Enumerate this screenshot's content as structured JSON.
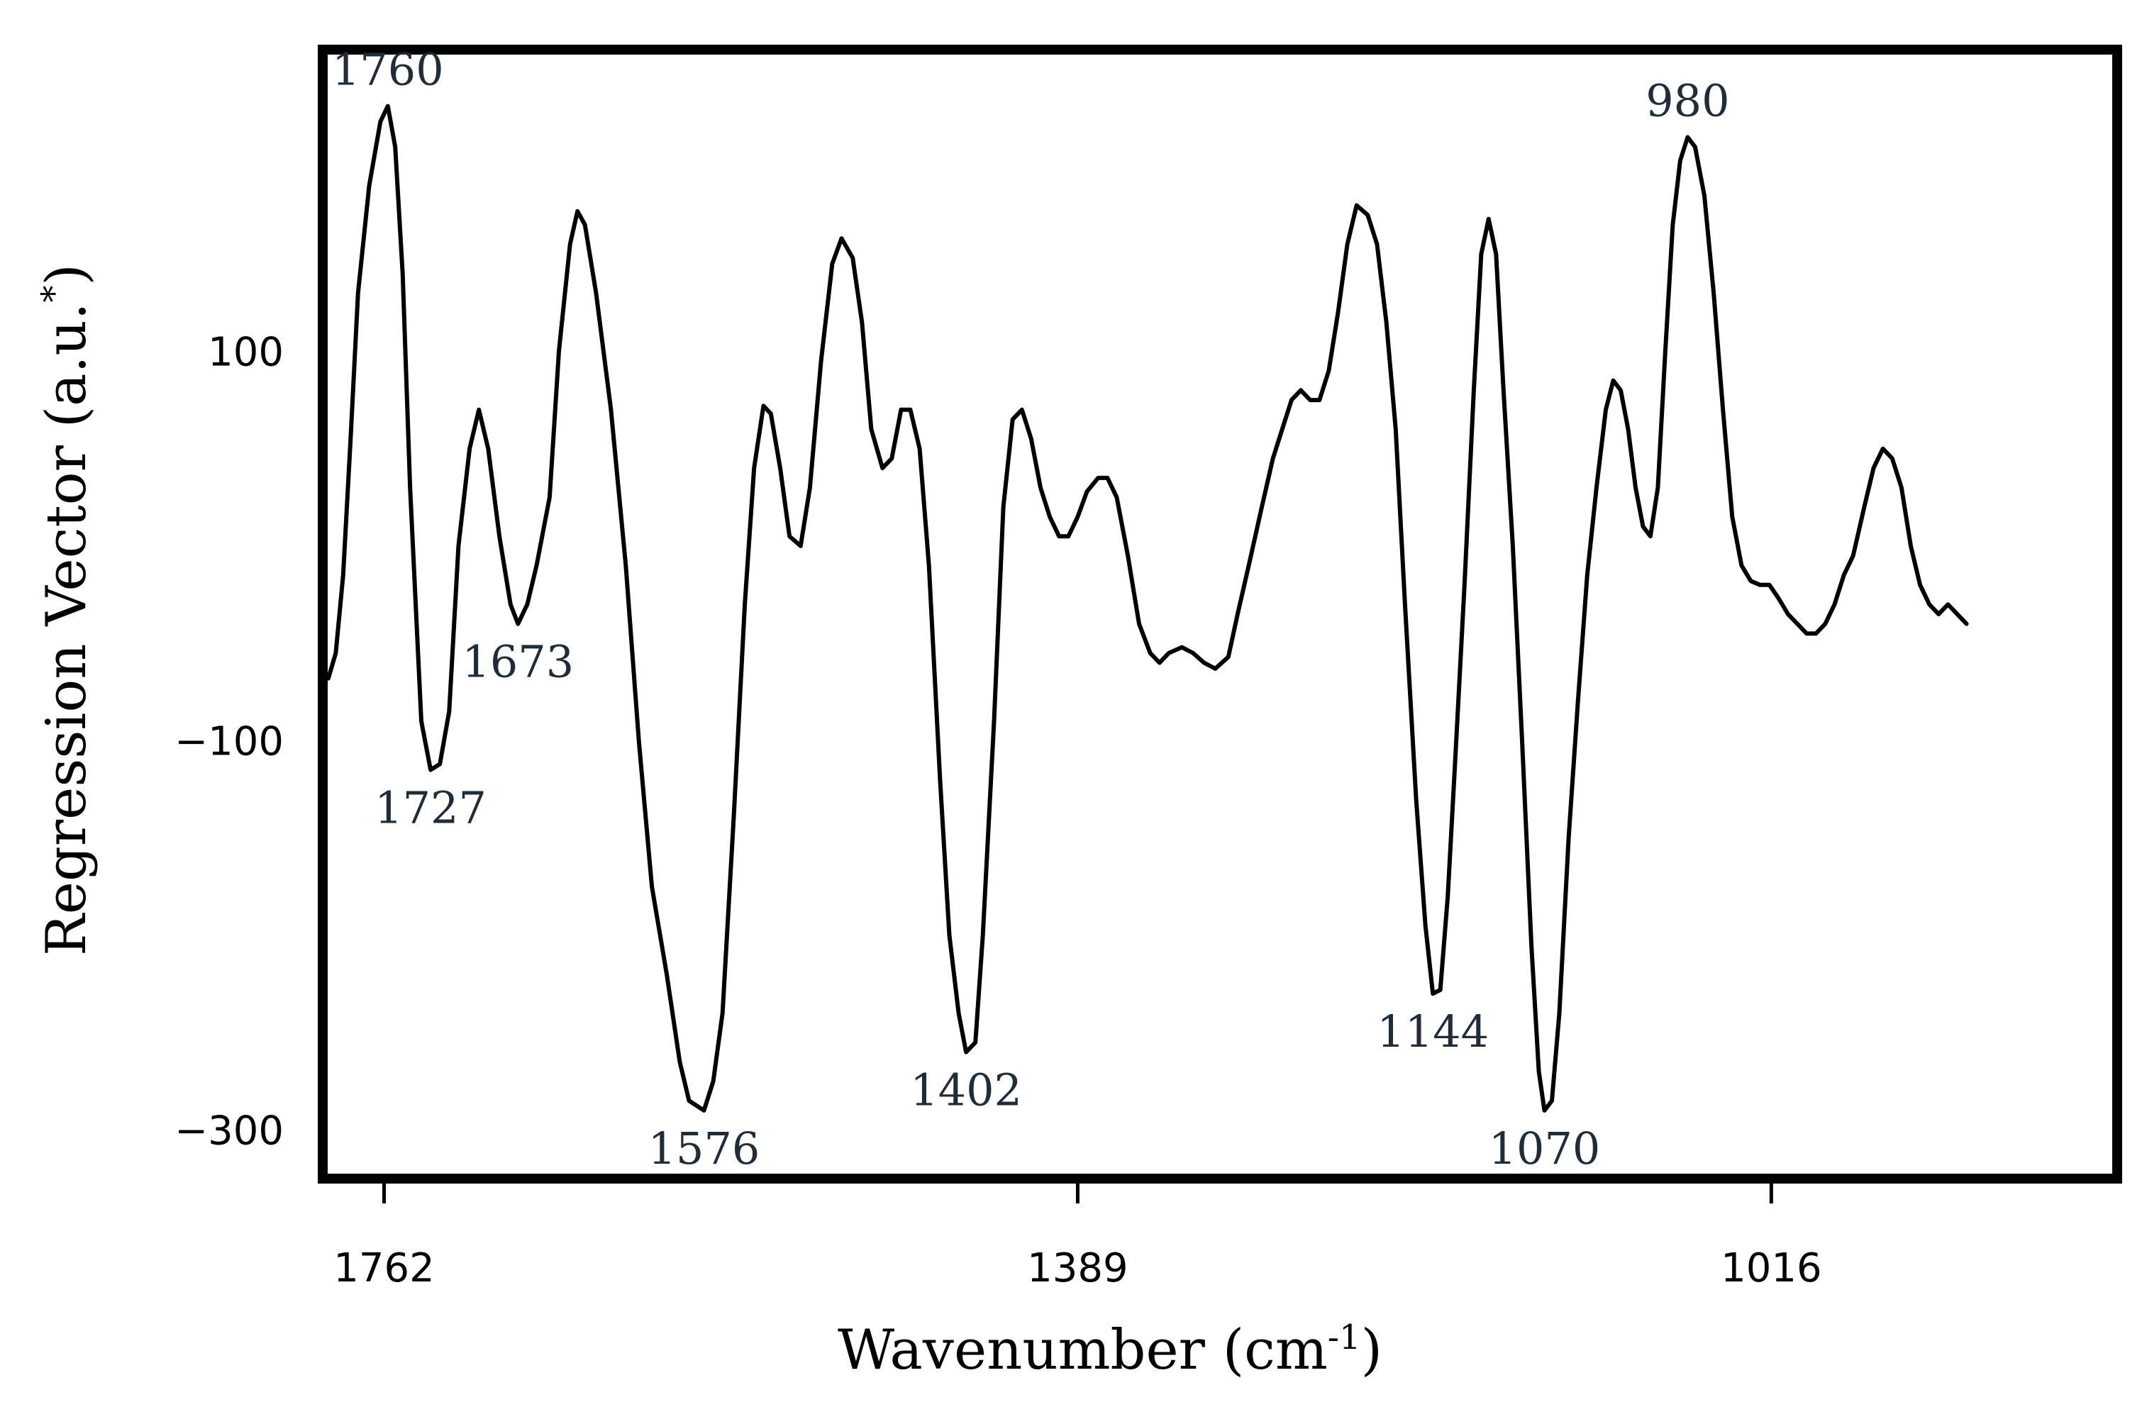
{
  "chart_data": {
    "type": "line",
    "xlabel": "Wavenumber (cm",
    "xlabel_sup": "-1",
    "xlabel_tail": ")",
    "ylabel": "Regression Vector (a.u.",
    "ylabel_sup": "*",
    "ylabel_tail": ")",
    "xlim": [
      1795,
      830
    ],
    "x_reversed": true,
    "ylim": [
      -325,
      255
    ],
    "grid": false,
    "x_ticks": [
      {
        "value": 1762,
        "label": "1762"
      },
      {
        "value": 1389,
        "label": "1389"
      },
      {
        "value": 1016,
        "label": "1016"
      }
    ],
    "y_ticks": [
      {
        "value": 100,
        "label": "100"
      },
      {
        "value": -100,
        "label": "−100"
      },
      {
        "value": -300,
        "label": "−300"
      }
    ],
    "series": [
      {
        "color": "#000000",
        "points": [
          [
            1792,
            -68
          ],
          [
            1788,
            -55
          ],
          [
            1784,
            -15
          ],
          [
            1780,
            55
          ],
          [
            1776,
            130
          ],
          [
            1770,
            185
          ],
          [
            1764,
            218
          ],
          [
            1760,
            226
          ],
          [
            1756,
            205
          ],
          [
            1752,
            140
          ],
          [
            1748,
            30
          ],
          [
            1742,
            -90
          ],
          [
            1737,
            -115
          ],
          [
            1732,
            -112
          ],
          [
            1727,
            -85
          ],
          [
            1722,
            0
          ],
          [
            1716,
            50
          ],
          [
            1711,
            70
          ],
          [
            1706,
            50
          ],
          [
            1700,
            5
          ],
          [
            1694,
            -30
          ],
          [
            1690,
            -40
          ],
          [
            1685,
            -30
          ],
          [
            1680,
            -10
          ],
          [
            1673,
            25
          ],
          [
            1668,
            100
          ],
          [
            1662,
            155
          ],
          [
            1658,
            172
          ],
          [
            1654,
            165
          ],
          [
            1648,
            130
          ],
          [
            1640,
            70
          ],
          [
            1632,
            -10
          ],
          [
            1625,
            -100
          ],
          [
            1618,
            -175
          ],
          [
            1610,
            -220
          ],
          [
            1603,
            -265
          ],
          [
            1598,
            -285
          ],
          [
            1590,
            -290
          ],
          [
            1585,
            -275
          ],
          [
            1580,
            -240
          ],
          [
            1574,
            -140
          ],
          [
            1568,
            -30
          ],
          [
            1563,
            40
          ],
          [
            1558,
            72
          ],
          [
            1554,
            68
          ],
          [
            1549,
            40
          ],
          [
            1544,
            5
          ],
          [
            1538,
            0
          ],
          [
            1533,
            30
          ],
          [
            1527,
            95
          ],
          [
            1521,
            145
          ],
          [
            1516,
            158
          ],
          [
            1510,
            148
          ],
          [
            1505,
            115
          ],
          [
            1500,
            60
          ],
          [
            1494,
            40
          ],
          [
            1489,
            45
          ],
          [
            1484,
            70
          ],
          [
            1479,
            70
          ],
          [
            1474,
            50
          ],
          [
            1469,
            -10
          ],
          [
            1463,
            -120
          ],
          [
            1458,
            -200
          ],
          [
            1453,
            -240
          ],
          [
            1449,
            -260
          ],
          [
            1444,
            -255
          ],
          [
            1440,
            -200
          ],
          [
            1434,
            -90
          ],
          [
            1429,
            20
          ],
          [
            1424,
            65
          ],
          [
            1419,
            70
          ],
          [
            1414,
            55
          ],
          [
            1409,
            30
          ],
          [
            1404,
            15
          ],
          [
            1399,
            5
          ],
          [
            1394,
            5
          ],
          [
            1389,
            15
          ],
          [
            1384,
            28
          ],
          [
            1378,
            35
          ],
          [
            1373,
            35
          ],
          [
            1368,
            25
          ],
          [
            1362,
            -5
          ],
          [
            1356,
            -40
          ],
          [
            1350,
            -55
          ],
          [
            1345,
            -60
          ],
          [
            1340,
            -55
          ],
          [
            1333,
            -52
          ],
          [
            1327,
            -55
          ],
          [
            1321,
            -60
          ],
          [
            1315,
            -63
          ],
          [
            1308,
            -57
          ],
          [
            1303,
            -35
          ],
          [
            1297,
            -10
          ],
          [
            1290,
            20
          ],
          [
            1284,
            45
          ],
          [
            1279,
            60
          ],
          [
            1274,
            75
          ],
          [
            1269,
            80
          ],
          [
            1264,
            75
          ],
          [
            1259,
            75
          ],
          [
            1254,
            90
          ],
          [
            1249,
            120
          ],
          [
            1244,
            155
          ],
          [
            1239,
            175
          ],
          [
            1233,
            170
          ],
          [
            1228,
            155
          ],
          [
            1223,
            115
          ],
          [
            1218,
            60
          ],
          [
            1213,
            -30
          ],
          [
            1207,
            -130
          ],
          [
            1202,
            -195
          ],
          [
            1198,
            -230
          ],
          [
            1194,
            -228
          ],
          [
            1190,
            -180
          ],
          [
            1186,
            -110
          ],
          [
            1181,
            -20
          ],
          [
            1176,
            80
          ],
          [
            1172,
            150
          ],
          [
            1168,
            168
          ],
          [
            1164,
            150
          ],
          [
            1160,
            80
          ],
          [
            1155,
            0
          ],
          [
            1150,
            -100
          ],
          [
            1145,
            -205
          ],
          [
            1141,
            -270
          ],
          [
            1138,
            -290
          ],
          [
            1134,
            -285
          ],
          [
            1130,
            -240
          ],
          [
            1125,
            -150
          ],
          [
            1120,
            -80
          ],
          [
            1115,
            -15
          ],
          [
            1110,
            30
          ],
          [
            1105,
            70
          ],
          [
            1101,
            85
          ],
          [
            1097,
            80
          ],
          [
            1093,
            60
          ],
          [
            1089,
            30
          ],
          [
            1085,
            10
          ],
          [
            1081,
            5
          ],
          [
            1077,
            30
          ],
          [
            1073,
            100
          ],
          [
            1069,
            165
          ],
          [
            1065,
            198
          ],
          [
            1061,
            210
          ],
          [
            1057,
            205
          ],
          [
            1052,
            180
          ],
          [
            1047,
            130
          ],
          [
            1042,
            70
          ],
          [
            1037,
            15
          ],
          [
            1032,
            -10
          ],
          [
            1027,
            -18
          ],
          [
            1022,
            -20
          ],
          [
            1017,
            -20
          ],
          [
            1012,
            -27
          ],
          [
            1007,
            -35
          ],
          [
            1002,
            -40
          ],
          [
            997,
            -45
          ],
          [
            992,
            -45
          ],
          [
            987,
            -40
          ],
          [
            982,
            -30
          ],
          [
            977,
            -15
          ],
          [
            972,
            -5
          ],
          [
            966,
            20
          ],
          [
            961,
            40
          ],
          [
            956,
            50
          ],
          [
            951,
            45
          ],
          [
            946,
            30
          ],
          [
            941,
            0
          ],
          [
            936,
            -20
          ],
          [
            931,
            -30
          ],
          [
            926,
            -35
          ],
          [
            921,
            -30
          ],
          [
            916,
            -35
          ],
          [
            911,
            -40
          ]
        ]
      }
    ],
    "annotations": [
      {
        "label": "1760",
        "x": 1760,
        "y": 226,
        "placement": "above"
      },
      {
        "label": "1727",
        "x": 1737,
        "y": -115,
        "placement": "below"
      },
      {
        "label": "1673",
        "x": 1690,
        "y": -40,
        "placement": "below"
      },
      {
        "label": "1576",
        "x": 1590,
        "y": -290,
        "placement": "below"
      },
      {
        "label": "1402",
        "x": 1449,
        "y": -260,
        "placement": "below"
      },
      {
        "label": "1144",
        "x": 1198,
        "y": -230,
        "placement": "below"
      },
      {
        "label": "1070",
        "x": 1138,
        "y": -290,
        "placement": "below"
      },
      {
        "label": "980",
        "x": 1061,
        "y": 210,
        "placement": "above"
      }
    ]
  }
}
